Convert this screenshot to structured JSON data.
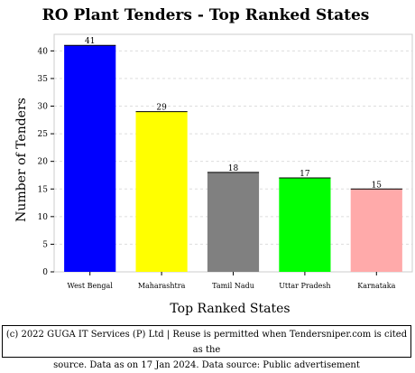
{
  "chart_data": {
    "type": "bar",
    "title": "RO Plant Tenders - Top Ranked States",
    "xlabel": "Top Ranked States",
    "ylabel": "Number of Tenders",
    "categories": [
      "West Bengal",
      "Maharashtra",
      "Tamil Nadu",
      "Uttar Pradesh",
      "Karnataka"
    ],
    "values": [
      41,
      29,
      18,
      17,
      15
    ],
    "colors": [
      "#0000ff",
      "#ffff00",
      "#808080",
      "#00ff00",
      "#ffaaaa"
    ],
    "ylim": [
      0,
      43
    ],
    "yticks": [
      0,
      5,
      10,
      15,
      20,
      25,
      30,
      35,
      40
    ],
    "grid": true,
    "legend": "none"
  },
  "footer": {
    "line1": "(c) 2022 GUGA IT Services (P) Ltd | Reuse is permitted when Tendersniper.com is cited as the",
    "line2": "source. Data as on 17 Jan 2024. Data source: Public advertisement"
  }
}
